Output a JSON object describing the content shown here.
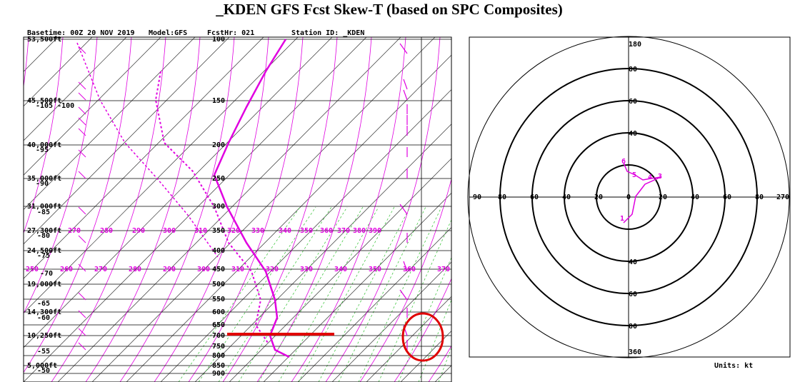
{
  "title": "_KDEN GFS Fcst Skew-T (based on SPC Composites)",
  "header": {
    "basetime": "Basetime: 00Z 20 NOV 2019",
    "model": "Model:GFS",
    "fcsthr": "FcstHr: 021",
    "station": "Station ID: _KDEN"
  },
  "skewt": {
    "pressure_labels": [
      "100",
      "150",
      "200",
      "250",
      "300",
      "350",
      "400",
      "450",
      "500",
      "550",
      "600",
      "650",
      "700",
      "750",
      "800",
      "850",
      "900"
    ],
    "altitude_labels": [
      "53,500ft",
      "45,500ft",
      "40,000ft",
      "35,000ft",
      "31,000ft",
      "27,300ft",
      "24,500ft",
      "19,000ft",
      "14,300ft",
      "10,250ft",
      "5,000ft"
    ],
    "temperature_labels": [
      "-105 -100",
      "-95",
      "-90",
      "-85",
      "-80",
      "-75",
      "-70",
      "-65",
      "-60",
      "-55",
      "-50"
    ],
    "theta_labels_low": [
      "250",
      "260",
      "270",
      "280",
      "290",
      "300",
      "310",
      "320",
      "330",
      "340",
      "350",
      "360",
      "370"
    ],
    "theta_labels_high": [
      "270",
      "280",
      "290",
      "300",
      "310",
      "320",
      "330",
      "340",
      "350",
      "360",
      "370",
      "380",
      "390"
    ]
  },
  "hodograph": {
    "ring_labels_top": [
      "180",
      "80",
      "60",
      "40"
    ],
    "ring_labels_bottom": [
      "40",
      "60",
      "80",
      "360"
    ],
    "ring_labels_left": [
      "90",
      "80",
      "60",
      "40",
      "20"
    ],
    "ring_labels_right": [
      "0",
      "20",
      "40",
      "60",
      "80",
      "270"
    ],
    "height_labels": [
      "6",
      "5",
      "4",
      "3",
      "1"
    ],
    "units": "Units: kt"
  }
}
